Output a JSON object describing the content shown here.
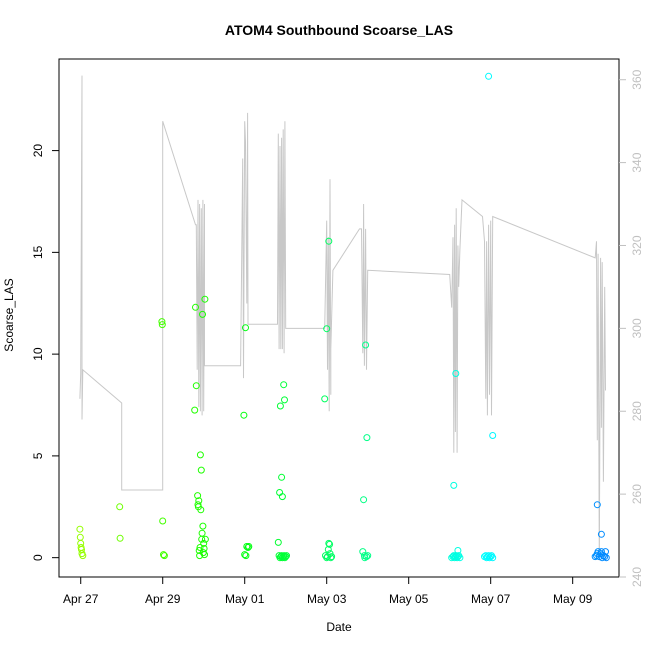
{
  "chart_data": {
    "type": "scatter",
    "title": "ATOM4 Southbound Scoarse_LAS",
    "xlabel": "Date",
    "ylabel": "Scoarse_LAS",
    "x_ticks": [
      {
        "label": "Apr 27",
        "day": 0
      },
      {
        "label": "Apr 29",
        "day": 2
      },
      {
        "label": "May 01",
        "day": 4
      },
      {
        "label": "May 03",
        "day": 6
      },
      {
        "label": "May 05",
        "day": 8
      },
      {
        "label": "May 07",
        "day": 10
      },
      {
        "label": "May 09",
        "day": 12
      }
    ],
    "xlim_days": [
      -0.53,
      13.13
    ],
    "ylim_left": [
      -0.95,
      24.5
    ],
    "y_ticks_left": [
      0,
      5,
      10,
      15,
      20
    ],
    "ylim_right": [
      240,
      365
    ],
    "y_ticks_right": [
      240,
      260,
      280,
      300,
      320,
      340,
      360
    ],
    "scatter_series": {
      "name": "Scoarse_LAS",
      "points": [
        [
          -0.02,
          1.4
        ],
        [
          -0.01,
          1.0
        ],
        [
          0.0,
          0.7
        ],
        [
          0.01,
          0.5
        ],
        [
          0.02,
          0.4
        ],
        [
          0.03,
          0.2
        ],
        [
          0.05,
          0.1
        ],
        [
          0.95,
          2.5
        ],
        [
          0.96,
          0.95
        ],
        [
          1.98,
          11.6
        ],
        [
          1.99,
          11.45
        ],
        [
          2.0,
          1.8
        ],
        [
          2.02,
          0.15
        ],
        [
          2.04,
          0.1
        ],
        [
          2.78,
          7.25
        ],
        [
          2.8,
          12.3
        ],
        [
          2.82,
          8.45
        ],
        [
          2.85,
          3.05
        ],
        [
          2.86,
          2.6
        ],
        [
          2.87,
          2.5
        ],
        [
          2.88,
          2.8
        ],
        [
          2.89,
          0.35
        ],
        [
          2.9,
          0.1
        ],
        [
          2.91,
          0.5
        ],
        [
          2.92,
          5.05
        ],
        [
          2.93,
          2.35
        ],
        [
          2.94,
          4.3
        ],
        [
          2.95,
          0.9
        ],
        [
          2.96,
          1.2
        ],
        [
          2.97,
          11.95
        ],
        [
          2.98,
          1.55
        ],
        [
          2.99,
          0.25
        ],
        [
          3.0,
          0.7
        ],
        [
          3.01,
          0.45
        ],
        [
          3.02,
          0.15
        ],
        [
          3.03,
          12.7
        ],
        [
          3.04,
          0.9
        ],
        [
          3.98,
          7.0
        ],
        [
          4.02,
          11.3
        ],
        [
          4.0,
          0.15
        ],
        [
          4.03,
          0.1
        ],
        [
          4.05,
          0.55
        ],
        [
          4.08,
          0.5
        ],
        [
          4.1,
          0.55
        ],
        [
          4.82,
          0.75
        ],
        [
          4.85,
          3.2
        ],
        [
          4.87,
          7.45
        ],
        [
          4.9,
          3.95
        ],
        [
          4.92,
          3.0
        ],
        [
          4.95,
          8.5
        ],
        [
          4.97,
          7.75
        ],
        [
          4.84,
          0.1
        ],
        [
          4.86,
          0.0
        ],
        [
          4.88,
          0.05
        ],
        [
          4.9,
          0.1
        ],
        [
          4.92,
          0.0
        ],
        [
          4.94,
          0.05
        ],
        [
          4.96,
          0.1
        ],
        [
          4.98,
          0.0
        ],
        [
          5.0,
          0.05
        ],
        [
          5.02,
          0.1
        ],
        [
          5.95,
          7.8
        ],
        [
          6.0,
          11.25
        ],
        [
          6.05,
          15.55
        ],
        [
          5.97,
          0.1
        ],
        [
          6.0,
          0.0
        ],
        [
          6.02,
          0.05
        ],
        [
          6.04,
          0.4
        ],
        [
          6.05,
          0.7
        ],
        [
          6.07,
          0.65
        ],
        [
          6.08,
          0.2
        ],
        [
          6.1,
          0.0
        ],
        [
          6.12,
          0.05
        ],
        [
          6.88,
          0.3
        ],
        [
          6.9,
          2.85
        ],
        [
          6.92,
          0.1
        ],
        [
          6.93,
          0.0
        ],
        [
          6.95,
          10.45
        ],
        [
          6.97,
          0.05
        ],
        [
          6.98,
          5.9
        ],
        [
          7.0,
          0.1
        ],
        [
          9.05,
          0.0
        ],
        [
          9.08,
          0.05
        ],
        [
          9.1,
          0.1
        ],
        [
          9.12,
          0.0
        ],
        [
          9.14,
          0.05
        ],
        [
          9.16,
          0.1
        ],
        [
          9.18,
          0.0
        ],
        [
          9.2,
          0.05
        ],
        [
          9.22,
          0.1
        ],
        [
          9.25,
          0.0
        ],
        [
          9.1,
          3.55
        ],
        [
          9.15,
          9.05
        ],
        [
          9.2,
          0.35
        ],
        [
          9.85,
          0.05
        ],
        [
          9.88,
          0.1
        ],
        [
          9.9,
          0.0
        ],
        [
          9.92,
          0.05
        ],
        [
          9.95,
          0.1
        ],
        [
          9.97,
          0.0
        ],
        [
          10.0,
          0.05
        ],
        [
          10.02,
          0.1
        ],
        [
          10.05,
          0.0
        ],
        [
          9.95,
          23.65
        ],
        [
          10.05,
          6.0
        ],
        [
          12.55,
          0.05
        ],
        [
          12.58,
          0.1
        ],
        [
          12.6,
          0.2
        ],
        [
          12.62,
          0.3
        ],
        [
          12.65,
          0.05
        ],
        [
          12.68,
          0.2
        ],
        [
          12.7,
          0.3
        ],
        [
          12.72,
          0.0
        ],
        [
          12.75,
          0.1
        ],
        [
          12.78,
          0.05
        ],
        [
          12.8,
          0.3
        ],
        [
          12.82,
          0.0
        ],
        [
          12.6,
          2.6
        ],
        [
          12.7,
          1.15
        ]
      ]
    },
    "line_series": {
      "name": "",
      "axis": "right",
      "points": [
        [
          -0.02,
          283
        ],
        [
          0.0,
          289
        ],
        [
          0.03,
          361
        ],
        [
          0.03,
          278
        ],
        [
          0.05,
          290
        ],
        [
          1.0,
          282
        ],
        [
          1.0,
          261
        ],
        [
          2.0,
          261
        ],
        [
          2.0,
          291
        ],
        [
          2.0,
          350
        ],
        [
          2.8,
          325
        ],
        [
          2.82,
          325
        ],
        [
          2.84,
          290
        ],
        [
          2.86,
          331
        ],
        [
          2.88,
          281
        ],
        [
          2.9,
          330
        ],
        [
          2.92,
          280
        ],
        [
          2.94,
          329
        ],
        [
          2.96,
          279
        ],
        [
          2.98,
          331
        ],
        [
          3.0,
          280
        ],
        [
          3.02,
          330
        ],
        [
          3.02,
          291
        ],
        [
          3.0,
          291
        ],
        [
          3.9,
          291
        ],
        [
          3.95,
          341
        ],
        [
          3.97,
          288
        ],
        [
          4.0,
          350
        ],
        [
          4.0,
          350
        ],
        [
          4.02,
          345
        ],
        [
          4.05,
          306
        ],
        [
          4.07,
          352
        ],
        [
          4.08,
          301
        ],
        [
          4.1,
          301
        ],
        [
          4.8,
          301
        ],
        [
          4.82,
          347
        ],
        [
          4.84,
          295
        ],
        [
          4.86,
          344
        ],
        [
          4.88,
          295
        ],
        [
          4.9,
          346
        ],
        [
          4.92,
          295
        ],
        [
          4.94,
          348
        ],
        [
          4.96,
          294
        ],
        [
          4.98,
          350
        ],
        [
          5.0,
          300
        ],
        [
          5.0,
          300
        ],
        [
          5.95,
          300
        ],
        [
          6.0,
          326
        ],
        [
          6.02,
          290
        ],
        [
          6.04,
          322
        ],
        [
          6.06,
          280
        ],
        [
          6.08,
          336
        ],
        [
          6.1,
          284
        ],
        [
          6.1,
          295
        ],
        [
          6.15,
          314
        ],
        [
          6.8,
          324
        ],
        [
          6.85,
          324
        ],
        [
          6.88,
          294
        ],
        [
          6.9,
          330
        ],
        [
          6.92,
          291
        ],
        [
          6.95,
          324
        ],
        [
          6.97,
          290
        ],
        [
          7.0,
          314
        ],
        [
          7.0,
          314
        ],
        [
          9.0,
          313
        ],
        [
          9.05,
          305
        ],
        [
          9.08,
          322
        ],
        [
          9.1,
          270
        ],
        [
          9.12,
          325
        ],
        [
          9.14,
          275
        ],
        [
          9.16,
          329
        ],
        [
          9.18,
          270
        ],
        [
          9.2,
          320
        ],
        [
          9.22,
          310
        ],
        [
          9.25,
          319
        ],
        [
          9.3,
          331
        ],
        [
          9.8,
          327
        ],
        [
          9.85,
          321
        ],
        [
          9.88,
          283
        ],
        [
          9.9,
          321
        ],
        [
          9.92,
          279
        ],
        [
          9.95,
          325
        ],
        [
          9.97,
          284
        ],
        [
          10.0,
          326
        ],
        [
          10.02,
          279
        ],
        [
          10.05,
          327
        ],
        [
          12.55,
          317
        ],
        [
          12.58,
          321
        ],
        [
          12.6,
          273
        ],
        [
          12.62,
          318
        ],
        [
          12.65,
          244
        ],
        [
          12.68,
          317
        ],
        [
          12.7,
          276
        ],
        [
          12.72,
          316
        ],
        [
          12.75,
          263
        ],
        [
          12.78,
          310
        ],
        [
          12.8,
          285
        ]
      ]
    }
  },
  "colors": {
    "line": "#c8c8c8",
    "right_axis": "#c0c0c0",
    "frame": "#000000"
  }
}
